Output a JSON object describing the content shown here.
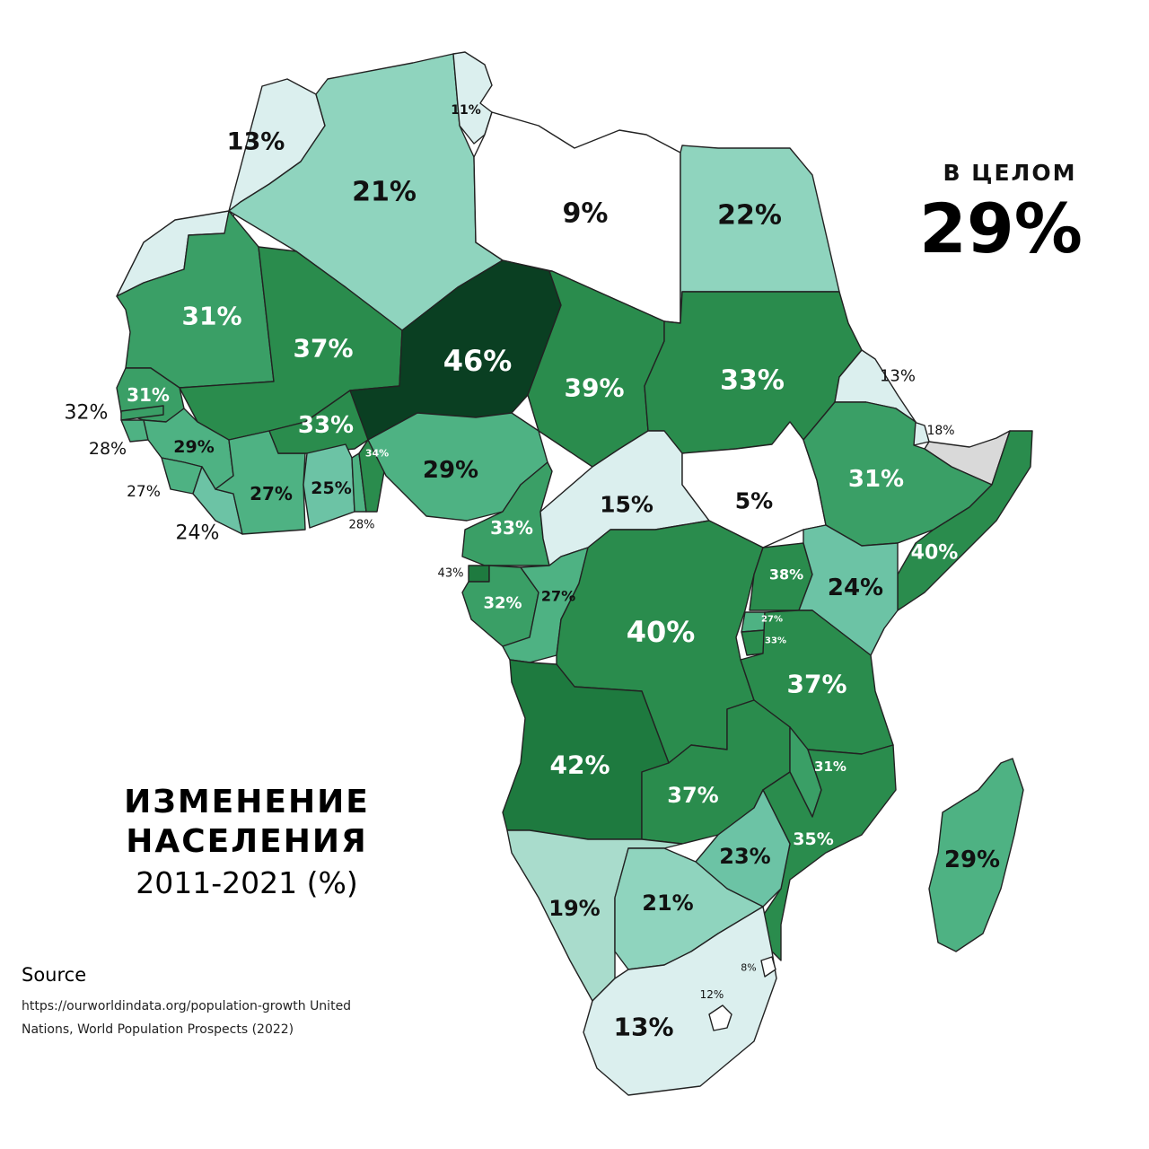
{
  "title": {
    "line1": "ИЗМЕНЕНИЕ",
    "line2": "НАСЕЛЕНИЯ",
    "line3": "2011-2021 (%)"
  },
  "overall": {
    "caption": "В ЦЕЛОМ",
    "value": "29%"
  },
  "source": {
    "heading": "Source",
    "text": "https://ourworldindata.org/population-growth United Nations, World Population Prospects (2022)"
  },
  "colors": {
    "border": "#222222",
    "no_data": "#d9d9d9",
    "scale": [
      "#ffffff",
      "#dbefee",
      "#a9dccc",
      "#8fd4be",
      "#6cc3a5",
      "#4eb283",
      "#3a9f66",
      "#2a8c4d",
      "#1e7a3f",
      "#0a3f22"
    ]
  },
  "regions": [
    {
      "id": "morocco",
      "value": 13,
      "label": "13%",
      "fill": "#dbefee",
      "text_color": "#111111"
    },
    {
      "id": "western-sahara",
      "value": null,
      "label": "",
      "fill": "#dbefee",
      "text_color": "#111111"
    },
    {
      "id": "algeria",
      "value": 21,
      "label": "21%",
      "fill": "#8fd4be",
      "text_color": "#111111"
    },
    {
      "id": "tunisia",
      "value": 11,
      "label": "11%",
      "fill": "#dbefee",
      "text_color": "#111111"
    },
    {
      "id": "libya",
      "value": 9,
      "label": "9%",
      "fill": "#ffffff",
      "text_color": "#111111"
    },
    {
      "id": "egypt",
      "value": 22,
      "label": "22%",
      "fill": "#8fd4be",
      "text_color": "#111111"
    },
    {
      "id": "mauritania",
      "value": 31,
      "label": "31%",
      "fill": "#3a9f66",
      "text_color": "#ffffff"
    },
    {
      "id": "mali",
      "value": 37,
      "label": "37%",
      "fill": "#2a8c4d",
      "text_color": "#ffffff"
    },
    {
      "id": "niger",
      "value": 46,
      "label": "46%",
      "fill": "#0a3f22",
      "text_color": "#ffffff"
    },
    {
      "id": "chad",
      "value": 39,
      "label": "39%",
      "fill": "#2a8c4d",
      "text_color": "#ffffff"
    },
    {
      "id": "sudan",
      "value": 33,
      "label": "33%",
      "fill": "#2a8c4d",
      "text_color": "#ffffff"
    },
    {
      "id": "eritrea",
      "value": 13,
      "label": "13%",
      "fill": "#dbefee",
      "text_color": "#111111"
    },
    {
      "id": "djibouti",
      "value": 18,
      "label": "18%",
      "fill": "#dbefee",
      "text_color": "#111111"
    },
    {
      "id": "somaliland",
      "value": null,
      "label": "",
      "fill": "#d9d9d9",
      "text_color": "#111111"
    },
    {
      "id": "senegal",
      "value": 31,
      "label": "31%",
      "fill": "#3a9f66",
      "text_color": "#ffffff"
    },
    {
      "id": "gambia",
      "value": 32,
      "label": "32%",
      "fill": "#3a9f66",
      "text_color": "#111111"
    },
    {
      "id": "guinea-bissau",
      "value": 28,
      "label": "28%",
      "fill": "#4eb283",
      "text_color": "#111111"
    },
    {
      "id": "guinea",
      "value": 29,
      "label": "29%",
      "fill": "#4eb283",
      "text_color": "#111111"
    },
    {
      "id": "sierra-leone",
      "value": 27,
      "label": "27%",
      "fill": "#4eb283",
      "text_color": "#111111"
    },
    {
      "id": "liberia",
      "value": 24,
      "label": "24%",
      "fill": "#6cc3a5",
      "text_color": "#111111"
    },
    {
      "id": "ivory-coast",
      "value": 27,
      "label": "27%",
      "fill": "#4eb283",
      "text_color": "#111111"
    },
    {
      "id": "burkina-faso",
      "value": 33,
      "label": "33%",
      "fill": "#2a8c4d",
      "text_color": "#ffffff"
    },
    {
      "id": "ghana",
      "value": 25,
      "label": "25%",
      "fill": "#6cc3a5",
      "text_color": "#111111"
    },
    {
      "id": "togo",
      "value": 28,
      "label": "28%",
      "fill": "#4eb283",
      "text_color": "#111111"
    },
    {
      "id": "benin",
      "value": 34,
      "label": "34%",
      "fill": "#2a8c4d",
      "text_color": "#ffffff"
    },
    {
      "id": "nigeria",
      "value": 29,
      "label": "29%",
      "fill": "#4eb283",
      "text_color": "#111111"
    },
    {
      "id": "cameroon",
      "value": 33,
      "label": "33%",
      "fill": "#3a9f66",
      "text_color": "#ffffff"
    },
    {
      "id": "central-african-republic",
      "value": 15,
      "label": "15%",
      "fill": "#dbefee",
      "text_color": "#111111"
    },
    {
      "id": "south-sudan",
      "value": 5,
      "label": "5%",
      "fill": "#ffffff",
      "text_color": "#111111"
    },
    {
      "id": "ethiopia",
      "value": 31,
      "label": "31%",
      "fill": "#3a9f66",
      "text_color": "#ffffff"
    },
    {
      "id": "somalia",
      "value": 40,
      "label": "40%",
      "fill": "#2a8c4d",
      "text_color": "#ffffff"
    },
    {
      "id": "equatorial-guinea",
      "value": 43,
      "label": "43%",
      "fill": "#1e7a3f",
      "text_color": "#111111"
    },
    {
      "id": "gabon",
      "value": 32,
      "label": "32%",
      "fill": "#3a9f66",
      "text_color": "#ffffff"
    },
    {
      "id": "congo",
      "value": 27,
      "label": "27%",
      "fill": "#4eb283",
      "text_color": "#111111"
    },
    {
      "id": "dr-congo",
      "value": 40,
      "label": "40%",
      "fill": "#2a8c4d",
      "text_color": "#ffffff"
    },
    {
      "id": "uganda",
      "value": 38,
      "label": "38%",
      "fill": "#2a8c4d",
      "text_color": "#ffffff"
    },
    {
      "id": "kenya",
      "value": 24,
      "label": "24%",
      "fill": "#6cc3a5",
      "text_color": "#111111"
    },
    {
      "id": "rwanda",
      "value": 27,
      "label": "27%",
      "fill": "#4eb283",
      "text_color": "#ffffff"
    },
    {
      "id": "burundi",
      "value": 33,
      "label": "33%",
      "fill": "#2a8c4d",
      "text_color": "#ffffff"
    },
    {
      "id": "tanzania",
      "value": 37,
      "label": "37%",
      "fill": "#2a8c4d",
      "text_color": "#ffffff"
    },
    {
      "id": "angola",
      "value": 42,
      "label": "42%",
      "fill": "#1e7a3f",
      "text_color": "#ffffff"
    },
    {
      "id": "zambia",
      "value": 37,
      "label": "37%",
      "fill": "#2a8c4d",
      "text_color": "#ffffff"
    },
    {
      "id": "malawi",
      "value": 31,
      "label": "31%",
      "fill": "#3a9f66",
      "text_color": "#ffffff"
    },
    {
      "id": "mozambique",
      "value": 35,
      "label": "35%",
      "fill": "#2a8c4d",
      "text_color": "#ffffff"
    },
    {
      "id": "zimbabwe",
      "value": 23,
      "label": "23%",
      "fill": "#6cc3a5",
      "text_color": "#111111"
    },
    {
      "id": "namibia",
      "value": 19,
      "label": "19%",
      "fill": "#a9dccc",
      "text_color": "#111111"
    },
    {
      "id": "botswana",
      "value": 21,
      "label": "21%",
      "fill": "#8fd4be",
      "text_color": "#111111"
    },
    {
      "id": "south-africa",
      "value": 13,
      "label": "13%",
      "fill": "#dbefee",
      "text_color": "#111111"
    },
    {
      "id": "eswatini",
      "value": 8,
      "label": "8%",
      "fill": "#ffffff",
      "text_color": "#111111"
    },
    {
      "id": "lesotho",
      "value": 12,
      "label": "12%",
      "fill": "#ffffff",
      "text_color": "#111111"
    },
    {
      "id": "madagascar",
      "value": 29,
      "label": "29%",
      "fill": "#4eb283",
      "text_color": "#111111"
    }
  ]
}
